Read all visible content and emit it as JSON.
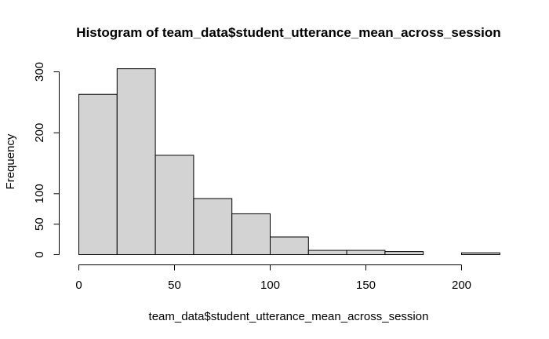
{
  "chart_data": {
    "type": "bar",
    "subtype": "histogram",
    "title": "Histogram of team_data$student_utterance_mean_across_session",
    "xlabel": "team_data$student_utterance_mean_across_session",
    "ylabel": "Frequency",
    "bin_edges": [
      0,
      20,
      40,
      60,
      80,
      100,
      120,
      140,
      160,
      180,
      200,
      220
    ],
    "values": [
      263,
      305,
      163,
      92,
      67,
      29,
      7,
      7,
      5,
      0,
      3
    ],
    "xlim": [
      0,
      220
    ],
    "ylim": [
      0,
      305
    ],
    "x_ticks": [
      0,
      50,
      100,
      150,
      200
    ],
    "y_ticks": [
      0,
      50,
      100,
      200,
      300
    ],
    "colors": {
      "bar_fill": "#d3d3d3",
      "bar_stroke": "#000000"
    },
    "grid": false,
    "legend": "none"
  }
}
